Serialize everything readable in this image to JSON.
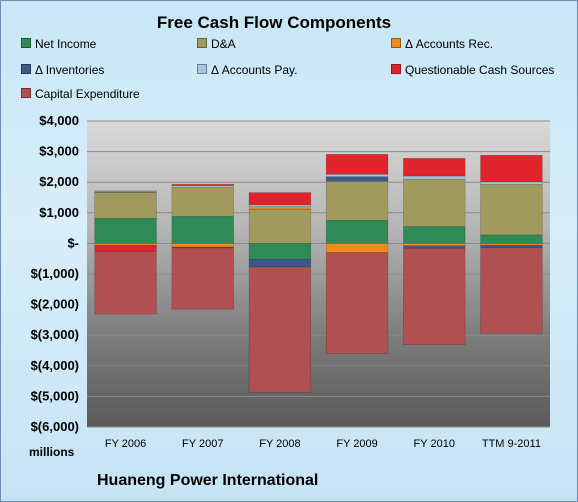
{
  "chart_data": {
    "type": "bar",
    "stacked": true,
    "title": "Free Cash Flow Components",
    "subtitle": "Huaneng Power International",
    "ylabel": "millions",
    "xlabel": "",
    "categories": [
      "FY 2006",
      "FY 2007",
      "FY 2008",
      "FY 2009",
      "FY 2010",
      "TTM 9-2011"
    ],
    "ylim": [
      -6000,
      4000
    ],
    "yticks": [
      4000,
      3000,
      2000,
      1000,
      0,
      -1000,
      -2000,
      -3000,
      -4000,
      -5000,
      -6000
    ],
    "ytick_labels": [
      "$4,000",
      "$3,000",
      "$2,000",
      "$1,000",
      "$-",
      "$(1,000)",
      "$(2,000)",
      "$(3,000)",
      "$(4,000)",
      "$(5,000)",
      "$(6,000)"
    ],
    "grid": true,
    "legend_position": "top",
    "series": [
      {
        "name": "Net Income",
        "color": "#2e8b57",
        "values": [
          820,
          880,
          -520,
          750,
          550,
          280
        ]
      },
      {
        "name": "D&A",
        "color": "#a09a5e",
        "values": [
          850,
          960,
          1120,
          1280,
          1550,
          1650
        ]
      },
      {
        "name": "Δ Accounts Rec.",
        "color": "#ee8b1a",
        "values": [
          -60,
          -120,
          80,
          -300,
          -80,
          -60
        ]
      },
      {
        "name": "Δ Inventories",
        "color": "#3a5a8a",
        "values": [
          20,
          -30,
          -250,
          150,
          -80,
          -80
        ]
      },
      {
        "name": "Δ Accounts Pay.",
        "color": "#a8c4e0",
        "values": [
          30,
          50,
          60,
          80,
          100,
          80
        ]
      },
      {
        "name": "Questionable Cash Sources",
        "color": "#e0242c",
        "values": [
          -200,
          40,
          400,
          650,
          580,
          870
        ]
      },
      {
        "name": "Capital Expenditure",
        "color": "#b05050",
        "values": [
          -2050,
          -2000,
          -4100,
          -3300,
          -3150,
          -2800
        ]
      }
    ]
  }
}
